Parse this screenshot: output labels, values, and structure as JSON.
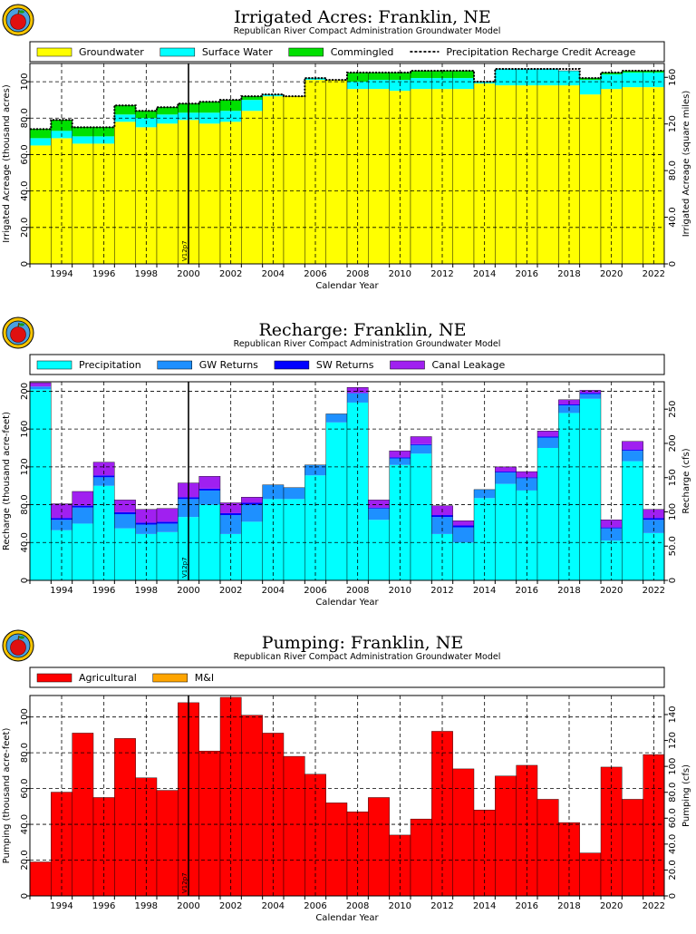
{
  "chart_data": [
    {
      "type": "area",
      "title": "Irrigated  Acres:  Franklin,  NE",
      "subtitle": "Republican  River  Compact  Administration  Groundwater  Model",
      "xlabel": "Calendar  Year",
      "ylabel": "Irrigated  Acreage  (thousand  acres)",
      "ylabel_right": "Irrigated  Acreage  (square  miles)",
      "xlim": [
        1993,
        2023
      ],
      "ylim": [
        0,
        110
      ],
      "ylim_right": [
        0,
        171.875
      ],
      "yticks": [
        0,
        20,
        40,
        60,
        80,
        100
      ],
      "ytick_labels": [
        "0",
        "20.0",
        "40.0",
        "60.0",
        "80.0",
        "100"
      ],
      "yticks_right": [
        0,
        40,
        80,
        120,
        160
      ],
      "ytick_labels_right": [
        "0",
        "40.0",
        "80.0",
        "120",
        "160"
      ],
      "xticks": [
        1994,
        1996,
        1998,
        2000,
        2002,
        2004,
        2006,
        2008,
        2010,
        2012,
        2014,
        2016,
        2018,
        2020,
        2022
      ],
      "grid": true,
      "legend": "top",
      "marker": {
        "x": 2000.5,
        "label": "V12p7"
      },
      "years": [
        1993,
        1994,
        1995,
        1996,
        1997,
        1998,
        1999,
        2000,
        2001,
        2002,
        2003,
        2004,
        2005,
        2006,
        2007,
        2008,
        2009,
        2010,
        2011,
        2012,
        2013,
        2014,
        2015,
        2016,
        2017,
        2018,
        2019,
        2020,
        2021,
        2022
      ],
      "series": [
        {
          "name": "Groundwater",
          "color": "#ffff00",
          "values": [
            65,
            69,
            66,
            66,
            78,
            75,
            77,
            79,
            77,
            78,
            84,
            92,
            92,
            101,
            101,
            96,
            96,
            95,
            96,
            96,
            96,
            99,
            98,
            98,
            98,
            98,
            93,
            96,
            97,
            97
          ]
        },
        {
          "name": "Surface Water",
          "color": "#00ffff",
          "values": [
            4,
            4,
            4,
            4,
            4,
            5,
            5,
            4,
            6,
            6,
            6,
            1,
            0,
            1,
            0,
            4,
            5,
            6,
            6,
            6,
            6,
            1,
            9,
            9,
            9,
            8,
            8,
            8,
            8,
            8
          ]
        },
        {
          "name": "Commingled",
          "color": "#00e000",
          "values": [
            5,
            6,
            5,
            5,
            5,
            4,
            4,
            5,
            6,
            6,
            2,
            0,
            0,
            0,
            0,
            5,
            4,
            4,
            4,
            4,
            4,
            0,
            0,
            0,
            0,
            0,
            1,
            1,
            1,
            1
          ]
        }
      ],
      "line": {
        "name": "Precipitation  Recharge  Credit  Acreage",
        "values": [
          74,
          79,
          75,
          75,
          87,
          84,
          86,
          88,
          89,
          90,
          92,
          93,
          92,
          102,
          101,
          105,
          105,
          105,
          106,
          106,
          106,
          100,
          107,
          107,
          107,
          107,
          102,
          105,
          106,
          106
        ]
      }
    },
    {
      "type": "area",
      "title": "Recharge:  Franklin,  NE",
      "subtitle": "Republican  River  Compact  Administration  Groundwater  Model",
      "xlabel": "Calendar  Year",
      "ylabel": "Recharge  (thousand  acre-feet)",
      "ylabel_right": "Recharge  (cfs)",
      "xlim": [
        1993,
        2023
      ],
      "ylim": [
        0,
        210
      ],
      "ylim_right": [
        0,
        290
      ],
      "yticks": [
        0,
        40,
        80,
        120,
        160,
        200
      ],
      "ytick_labels": [
        "0",
        "40.0",
        "80.0",
        "120",
        "160",
        "200"
      ],
      "yticks_right": [
        0,
        50,
        100,
        150,
        200,
        250
      ],
      "ytick_labels_right": [
        "0",
        "50.0",
        "100",
        "150",
        "200",
        "250"
      ],
      "xticks": [
        1994,
        1996,
        1998,
        2000,
        2002,
        2004,
        2006,
        2008,
        2010,
        2012,
        2014,
        2016,
        2018,
        2020,
        2022
      ],
      "grid": true,
      "legend": "top",
      "marker": {
        "x": 2000.5,
        "label": "V12p7"
      },
      "years": [
        1993,
        1994,
        1995,
        1996,
        1997,
        1998,
        1999,
        2000,
        2001,
        2002,
        2003,
        2004,
        2005,
        2006,
        2007,
        2008,
        2009,
        2010,
        2011,
        2012,
        2013,
        2014,
        2015,
        2016,
        2017,
        2018,
        2019,
        2020,
        2021,
        2022
      ],
      "series": [
        {
          "name": "Precipitation",
          "color": "#00ffff",
          "values": [
            202,
            53,
            60,
            100,
            55,
            49,
            51,
            67,
            80,
            49,
            62,
            86,
            86,
            111,
            167,
            188,
            64,
            122,
            134,
            49,
            40,
            87,
            102,
            95,
            140,
            177,
            192,
            42,
            126,
            50
          ]
        },
        {
          "name": "GW  Returns",
          "color": "#1e90ff",
          "values": [
            3,
            11,
            17,
            9,
            15,
            10,
            9,
            19,
            15,
            20,
            18,
            15,
            12,
            11,
            9,
            10,
            12,
            7,
            9,
            18,
            16,
            9,
            12,
            13,
            11,
            8,
            5,
            13,
            11,
            14
          ]
        },
        {
          "name": "SW  Returns",
          "color": "#0000ff",
          "values": [
            0,
            2,
            2,
            2,
            2,
            2,
            2,
            2,
            2,
            2,
            2,
            0,
            0,
            0,
            0,
            0,
            1,
            1,
            1,
            2,
            2,
            0,
            1,
            1,
            1,
            1,
            1,
            1,
            1,
            2
          ]
        },
        {
          "name": "Canal  Leakage",
          "color": "#a020f0",
          "values": [
            4,
            15,
            15,
            14,
            13,
            14,
            14,
            15,
            13,
            11,
            6,
            0,
            0,
            0,
            0,
            6,
            8,
            7,
            8,
            10,
            5,
            0,
            5,
            6,
            6,
            5,
            3,
            8,
            9,
            9
          ]
        }
      ]
    },
    {
      "type": "area",
      "title": "Pumping:  Franklin,  NE",
      "subtitle": "Republican  River  Compact  Administration  Groundwater  Model",
      "xlabel": "Calendar  Year",
      "ylabel": "Pumping  (thousand  acre-feet)",
      "ylabel_right": "Pumping  (cfs)",
      "xlim": [
        1993,
        2023
      ],
      "ylim": [
        0,
        112
      ],
      "ylim_right": [
        0,
        154.7
      ],
      "yticks": [
        0,
        20,
        40,
        60,
        80,
        100
      ],
      "ytick_labels": [
        "0",
        "20.0",
        "40.0",
        "60.0",
        "80.0",
        "100"
      ],
      "yticks_right": [
        0,
        20,
        40,
        60,
        80,
        100,
        120,
        140
      ],
      "ytick_labels_right": [
        "0",
        "20.0",
        "40.0",
        "60.0",
        "80.0",
        "100",
        "120",
        "140"
      ],
      "xticks": [
        1994,
        1996,
        1998,
        2000,
        2002,
        2004,
        2006,
        2008,
        2010,
        2012,
        2014,
        2016,
        2018,
        2020,
        2022
      ],
      "grid": true,
      "legend": "top",
      "marker": {
        "x": 2000.5,
        "label": "V12p7"
      },
      "years": [
        1993,
        1994,
        1995,
        1996,
        1997,
        1998,
        1999,
        2000,
        2001,
        2002,
        2003,
        2004,
        2005,
        2006,
        2007,
        2008,
        2009,
        2010,
        2011,
        2012,
        2013,
        2014,
        2015,
        2016,
        2017,
        2018,
        2019,
        2020,
        2021,
        2022
      ],
      "series": [
        {
          "name": "Agricultural",
          "color": "#ff0000",
          "values": [
            19,
            58,
            91,
            55,
            88,
            66,
            59,
            108,
            81,
            111,
            101,
            91,
            78,
            68,
            52,
            47,
            55,
            34,
            43,
            92,
            71,
            48,
            67,
            73,
            54,
            41,
            24,
            72,
            54,
            79
          ]
        },
        {
          "name": "M&I",
          "color": "#ffa500",
          "values": [
            0,
            0,
            0,
            0,
            0,
            0,
            0,
            0,
            0,
            0,
            0,
            0,
            0,
            0,
            0,
            0,
            0,
            0,
            0,
            0,
            0,
            0,
            0,
            0,
            0,
            0,
            0,
            0,
            0,
            0
          ]
        }
      ]
    }
  ]
}
